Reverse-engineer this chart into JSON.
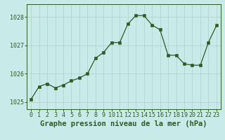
{
  "x": [
    0,
    1,
    2,
    3,
    4,
    5,
    6,
    7,
    8,
    9,
    10,
    11,
    12,
    13,
    14,
    15,
    16,
    17,
    18,
    19,
    20,
    21,
    22,
    23
  ],
  "y": [
    1025.1,
    1025.55,
    1025.65,
    1025.5,
    1025.6,
    1025.75,
    1025.85,
    1026.0,
    1026.55,
    1026.75,
    1027.1,
    1027.1,
    1027.75,
    1028.05,
    1028.05,
    1027.72,
    1027.55,
    1026.65,
    1026.65,
    1026.35,
    1026.3,
    1026.3,
    1027.1,
    1027.7
  ],
  "line_color": "#2d5a27",
  "marker_color": "#2d5a27",
  "bg_color": "#c8eae8",
  "grid_color": "#b0d0ce",
  "axis_color": "#2d5a27",
  "tick_label_color": "#2d5a27",
  "xlabel": "Graphe pression niveau de la mer (hPa)",
  "ylim": [
    1024.75,
    1028.45
  ],
  "xlim": [
    -0.5,
    23.5
  ],
  "yticks": [
    1025,
    1026,
    1027,
    1028
  ],
  "xticks": [
    0,
    1,
    2,
    3,
    4,
    5,
    6,
    7,
    8,
    9,
    10,
    11,
    12,
    13,
    14,
    15,
    16,
    17,
    18,
    19,
    20,
    21,
    22,
    23
  ],
  "xlabel_fontsize": 7.5,
  "tick_fontsize": 6.0,
  "figsize": [
    3.2,
    2.0
  ],
  "dpi": 100
}
